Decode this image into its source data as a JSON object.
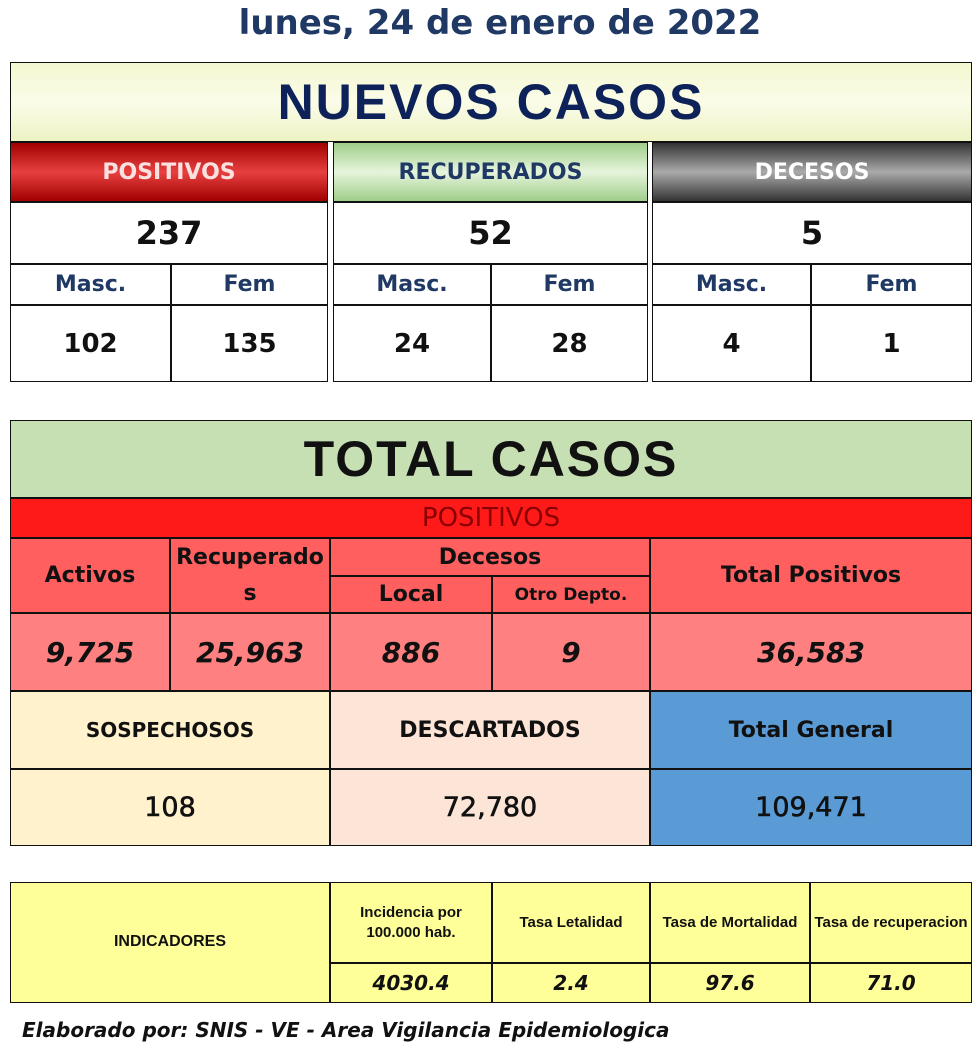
{
  "date": "lunes, 24 de enero de 2022",
  "nuevos": {
    "title": "NUEVOS CASOS",
    "groups": [
      {
        "label": "POSITIVOS",
        "total": "237",
        "masc_label": "Masc.",
        "fem_label": "Fem",
        "masc": "102",
        "fem": "135"
      },
      {
        "label": "RECUPERADOS",
        "total": "52",
        "masc_label": "Masc.",
        "fem_label": "Fem",
        "masc": "24",
        "fem": "28"
      },
      {
        "label": "DECESOS",
        "total": "5",
        "masc_label": "Masc.",
        "fem_label": "Fem",
        "masc": "4",
        "fem": "1"
      }
    ]
  },
  "total": {
    "title": "TOTAL CASOS",
    "positivos_label": "POSITIVOS",
    "headers": {
      "activos": "Activos",
      "recuperados": "Recuperados",
      "decesos": "Decesos",
      "local": "Local",
      "otro": "Otro Depto.",
      "total_positivos": "Total Positivos"
    },
    "values": {
      "activos": "9,725",
      "recuperados": "25,963",
      "local": "886",
      "otro": "9",
      "total_positivos": "36,583"
    },
    "summary": [
      {
        "label": "SOSPECHOSOS",
        "value": "108"
      },
      {
        "label": "DESCARTADOS",
        "value": "72,780"
      },
      {
        "label": "Total General",
        "value": "109,471"
      }
    ]
  },
  "indicadores": {
    "title": "INDICADORES",
    "items": [
      {
        "label": "Incidencia por 100.000 hab.",
        "value": "4030.4"
      },
      {
        "label": "Tasa Letalidad",
        "value": "2.4"
      },
      {
        "label": "Tasa de Mortalidad",
        "value": "97.6"
      },
      {
        "label": "Tasa de recuperacion",
        "value": "71.0"
      }
    ]
  },
  "footer": "Elaborado por:  SNIS - VE  - Area Vigilancia Epidemiologica"
}
